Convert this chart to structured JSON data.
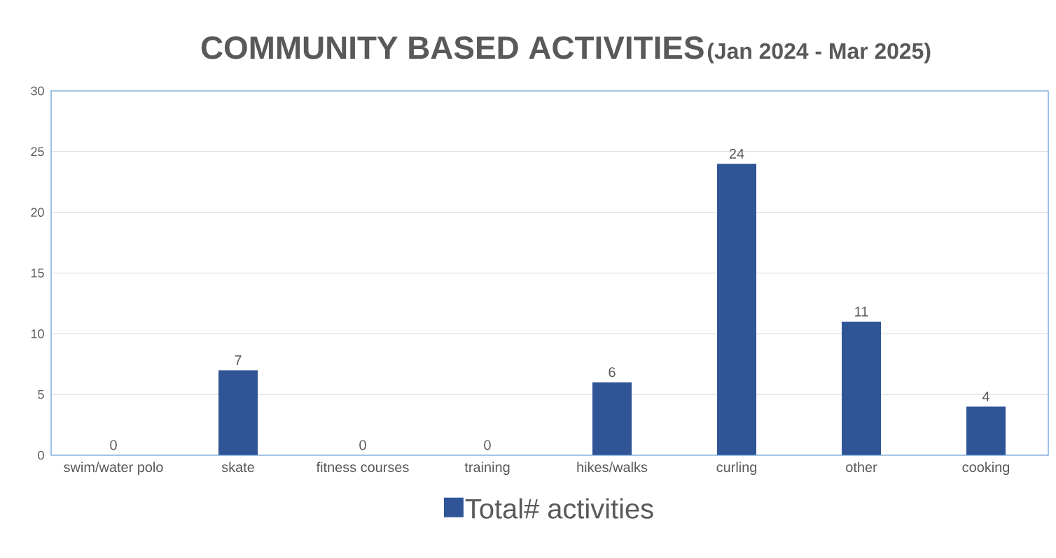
{
  "chart_data": {
    "type": "bar",
    "title": "COMMUNITY BASED ACTIVITIES",
    "subtitle": "(Jan 2024 - Mar 2025)",
    "categories": [
      "swim/water polo",
      "skate",
      "fitness courses",
      "training",
      "hikes/walks",
      "curling",
      "other",
      "cooking"
    ],
    "series": [
      {
        "name": "Total# activities",
        "color": "#2f5597",
        "values": [
          0,
          7,
          0,
          0,
          6,
          24,
          11,
          4
        ]
      }
    ],
    "ylim": [
      0,
      30
    ],
    "yticks": [
      0,
      5,
      10,
      15,
      20,
      25,
      30
    ],
    "grid": "y",
    "legend": "bottom",
    "data_labels": true
  }
}
